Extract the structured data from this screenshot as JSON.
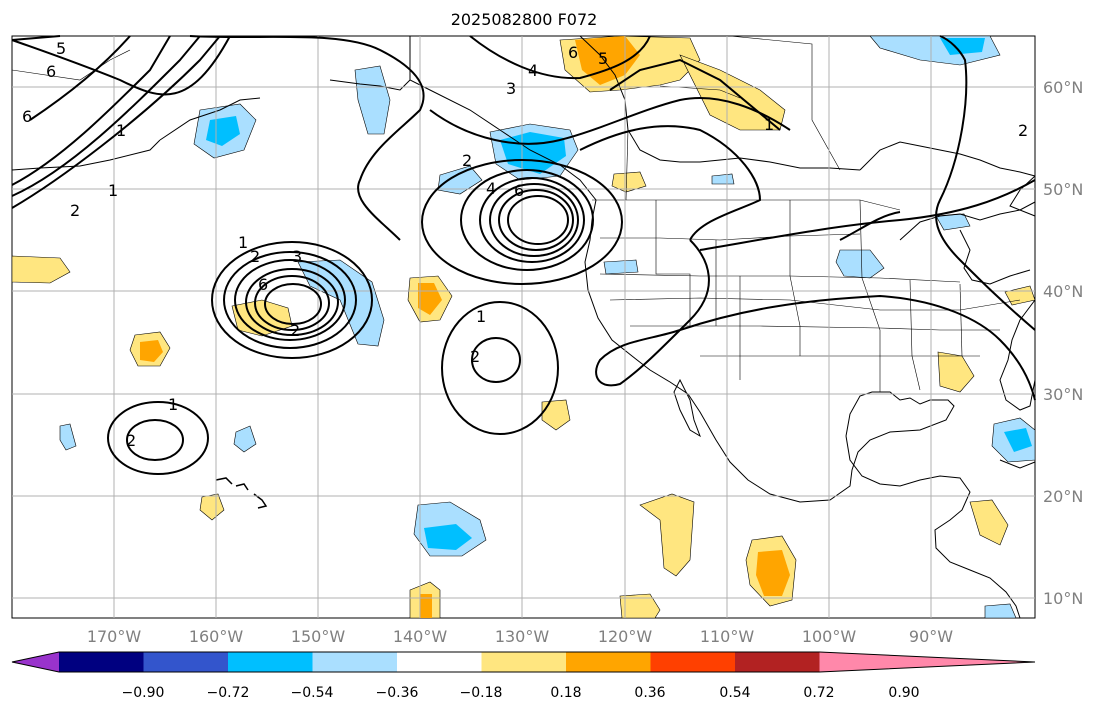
{
  "title": "2025082800 F072",
  "map": {
    "lon_ticks": [
      "170°W",
      "160°W",
      "150°W",
      "140°W",
      "130°W",
      "120°W",
      "110°W",
      "100°W",
      "90°W"
    ],
    "lat_ticks": [
      "60°N",
      "50°N",
      "40°N",
      "30°N",
      "20°N",
      "10°N"
    ],
    "grid": true,
    "grid_color": "#b0b0b0",
    "contour_labels": [
      "5",
      "6",
      "6",
      "4",
      "3",
      "2",
      "1",
      "1",
      "2",
      "6",
      "5",
      "4",
      "3",
      "2",
      "1",
      "2",
      "6",
      "6",
      "1",
      "2",
      "1",
      "2",
      "1",
      "2"
    ]
  },
  "colorbar": {
    "colors": [
      "#9933cc",
      "#000080",
      "#3355cc",
      "#00bfff",
      "#aadfff",
      "#ffffff",
      "#ffe680",
      "#ffa500",
      "#ff4000",
      "#b22222",
      "#ff88aa"
    ],
    "tick_labels": [
      "−0.90",
      "−0.72",
      "−0.54",
      "−0.36",
      "−0.18",
      "0.18",
      "0.36",
      "0.54",
      "0.72",
      "0.90"
    ]
  }
}
